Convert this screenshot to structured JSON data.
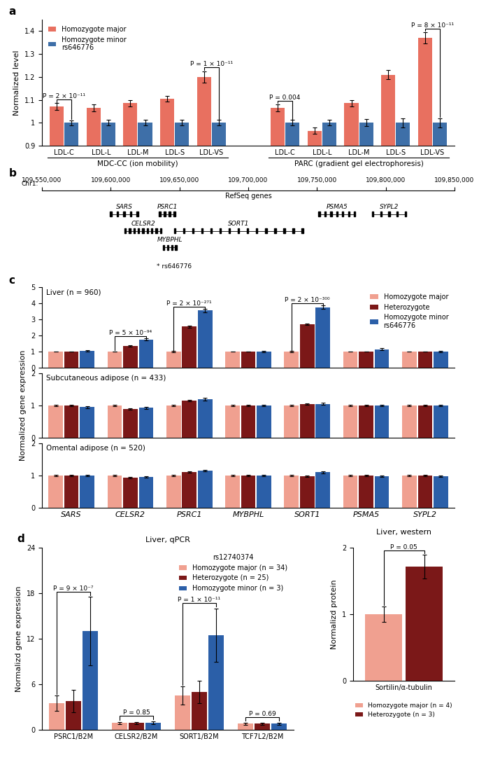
{
  "chart_data": [
    {
      "type": "bar",
      "panel_label": "a",
      "ylabel": "Normalized level",
      "ylim": [
        0.9,
        1.45
      ],
      "yticks": [
        0.9,
        1,
        1.1,
        1.2,
        1.3,
        1.4
      ],
      "categories": [
        "LDL-C",
        "LDL-L",
        "LDL-M",
        "LDL-S",
        "LDL-VS"
      ],
      "groups": [
        "MDC-CC (ion mobility)",
        "PARC (gradient gel electrophoresis)"
      ],
      "series": [
        {
          "name": "Homozygote major",
          "color": "#E87060",
          "values": [
            [
              1.07,
              1.065,
              1.085,
              1.105,
              1.2
            ],
            [
              1.065,
              0.965,
              1.085,
              1.21,
              1.37
            ]
          ],
          "errors": [
            [
              0.015,
              0.015,
              0.013,
              0.013,
              0.025
            ],
            [
              0.015,
              0.013,
              0.015,
              0.02,
              0.025
            ]
          ]
        },
        {
          "name": "Homozygote minor\nrs646776",
          "color": "#3E6FA8",
          "values": [
            [
              1.0,
              1.0,
              1.0,
              1.0,
              1.0
            ],
            [
              1.0,
              1.0,
              1.0,
              1.0,
              1.0
            ]
          ],
          "errors": [
            [
              0.01,
              0.012,
              0.012,
              0.012,
              0.012
            ],
            [
              0.012,
              0.012,
              0.015,
              0.02,
              0.02
            ]
          ]
        }
      ],
      "annotations": [
        {
          "group": "MDC-CC (ion mobility)",
          "category": "LDL-C",
          "text": "P = 2 × 10⁻¹¹"
        },
        {
          "group": "MDC-CC (ion mobility)",
          "category": "LDL-VS",
          "text": "P = 1 × 10⁻¹¹"
        },
        {
          "group": "PARC (gradient gel electrophoresis)",
          "category": "LDL-C",
          "text": "P = 0.004"
        },
        {
          "group": "PARC (gradient gel electrophoresis)",
          "category": "LDL-VS",
          "text": "P = 8 × 10⁻¹¹"
        }
      ],
      "legend": "upper left"
    },
    {
      "type": "gene_track",
      "panel_label": "b",
      "xlabel": "Chr1:",
      "title": "RefSeq genes",
      "xlim": [
        109550000,
        109850000
      ],
      "xticks": [
        {
          "value": 109550000,
          "label": "109,550,000"
        },
        {
          "value": 109600000,
          "label": "109,600,000"
        },
        {
          "value": 109650000,
          "label": "109,650,000"
        },
        {
          "value": 109700000,
          "label": "109,700,000"
        },
        {
          "value": 109750000,
          "label": "109,750,000"
        },
        {
          "value": 109800000,
          "label": "109,800,000"
        },
        {
          "value": 109850000,
          "label": "109,850,000"
        }
      ],
      "genes": [
        {
          "name": "SARS",
          "start": 109599500,
          "end": 109620000,
          "exons": 5
        },
        {
          "name": "PSRC1",
          "start": 109635000,
          "end": 109647000,
          "exons": 4
        },
        {
          "name": "PSMA5",
          "start": 109751000,
          "end": 109778000,
          "exons": 7
        },
        {
          "name": "SYPL2",
          "start": 109790000,
          "end": 109815000,
          "exons": 5
        },
        {
          "name": "CELSR2",
          "start": 109610000,
          "end": 109637000,
          "exons": 9
        },
        {
          "name": "SORT1",
          "start": 109646000,
          "end": 109740000,
          "exons": 15
        },
        {
          "name": "MYBPHL",
          "start": 109638000,
          "end": 109648000,
          "exons": 4
        }
      ],
      "annotations": [
        {
          "x": 109646000,
          "text": "* rs646776"
        }
      ],
      "tick_labels": "x"
    },
    {
      "type": "bar",
      "panel_label": "c",
      "title": "Liver (n = 960)",
      "categories": [
        "SARS",
        "CELSR2",
        "PSRC1",
        "MYBPHL",
        "SORT1",
        "PSMA5",
        "SYPL2"
      ],
      "ylim": [
        0,
        5
      ],
      "yticks": [
        0,
        1,
        2,
        3,
        4,
        5
      ],
      "series": [
        {
          "name": "Homozygote major",
          "color": "#F0A090",
          "values": [
            1.0,
            1.0,
            1.0,
            1.0,
            1.0,
            1.0,
            1.0
          ],
          "errors": [
            0.02,
            0.02,
            0.03,
            0.02,
            0.03,
            0.02,
            0.02
          ]
        },
        {
          "name": "Heterozygote",
          "color": "#7B1818",
          "values": [
            1.0,
            1.35,
            2.55,
            1.0,
            2.7,
            1.0,
            1.0
          ],
          "errors": [
            0.02,
            0.04,
            0.05,
            0.02,
            0.05,
            0.02,
            0.02
          ]
        },
        {
          "name": "Homozygote minor\nrs646776",
          "color": "#2B5FA8",
          "values": [
            1.05,
            1.75,
            3.55,
            1.0,
            3.75,
            1.15,
            1.0
          ],
          "errors": [
            0.04,
            0.06,
            0.1,
            0.03,
            0.1,
            0.05,
            0.03
          ]
        }
      ],
      "annotations": [
        {
          "category": "CELSR2",
          "text": "P = 5 × 10⁻⁹⁴"
        },
        {
          "category": "PSRC1",
          "text": "P = 2 × 10⁻²⁷¹"
        },
        {
          "category": "SORT1",
          "text": "P = 2 × 10⁻³⁰⁰"
        }
      ],
      "legend": "upper right",
      "tick_labels": "y"
    },
    {
      "type": "bar",
      "title": "Subcutaneous adipose (n = 433)",
      "ylabel": "Normalized gene expression",
      "categories": [
        "SARS",
        "CELSR2",
        "PSRC1",
        "MYBPHL",
        "SORT1",
        "PSMA5",
        "SYPL2"
      ],
      "ylim": [
        0,
        2
      ],
      "yticks": [
        0,
        1,
        2
      ],
      "series": [
        {
          "color": "#F0A090",
          "values": [
            1.0,
            1.0,
            1.0,
            1.0,
            1.0,
            1.0,
            1.0
          ],
          "errors": [
            0.02,
            0.02,
            0.02,
            0.02,
            0.02,
            0.02,
            0.02
          ]
        },
        {
          "color": "#7B1818",
          "values": [
            1.0,
            0.9,
            1.15,
            1.0,
            1.05,
            1.0,
            1.0
          ],
          "errors": [
            0.02,
            0.02,
            0.03,
            0.02,
            0.02,
            0.02,
            0.02
          ]
        },
        {
          "color": "#2B5FA8",
          "values": [
            0.95,
            0.93,
            1.2,
            1.0,
            1.05,
            1.0,
            1.0
          ],
          "errors": [
            0.03,
            0.03,
            0.04,
            0.02,
            0.03,
            0.02,
            0.02
          ]
        }
      ],
      "tick_labels": "y"
    },
    {
      "type": "bar",
      "title": "Omental adipose (n = 520)",
      "categories": [
        "SARS",
        "CELSR2",
        "PSRC1",
        "MYBPHL",
        "SORT1",
        "PSMA5",
        "SYPL2"
      ],
      "ylim": [
        0,
        2
      ],
      "yticks": [
        0,
        1,
        2
      ],
      "series": [
        {
          "color": "#F0A090",
          "values": [
            1.0,
            1.0,
            1.0,
            1.0,
            1.0,
            1.0,
            1.0
          ],
          "errors": [
            0.02,
            0.02,
            0.02,
            0.02,
            0.02,
            0.02,
            0.02
          ]
        },
        {
          "color": "#7B1818",
          "values": [
            1.0,
            0.93,
            1.1,
            1.0,
            0.97,
            1.0,
            1.0
          ],
          "errors": [
            0.02,
            0.02,
            0.02,
            0.02,
            0.02,
            0.02,
            0.02
          ]
        },
        {
          "color": "#2B5FA8",
          "values": [
            1.0,
            0.95,
            1.15,
            1.0,
            1.1,
            0.97,
            0.97
          ],
          "errors": [
            0.02,
            0.02,
            0.03,
            0.02,
            0.04,
            0.02,
            0.02
          ]
        }
      ]
    },
    {
      "type": "bar",
      "panel_label": "d",
      "title": "Liver, qPCR",
      "ylabel": "Normalizd gene expression",
      "categories": [
        "PSRC1/B2M",
        "CELSR2/B2M",
        "SORT1/B2M",
        "TCF7L2/B2M"
      ],
      "ylim": [
        0,
        24
      ],
      "yticks": [
        0,
        6,
        12,
        18,
        24
      ],
      "series": [
        {
          "name": "Homozygote major (n = 34)",
          "color": "#F0A090",
          "values": [
            3.5,
            0.9,
            4.5,
            0.8
          ],
          "errors": [
            1.0,
            0.15,
            1.2,
            0.12
          ]
        },
        {
          "name": "Heterozygote (n = 25)",
          "color": "#7B1818",
          "values": [
            3.8,
            0.9,
            5.0,
            0.8
          ],
          "errors": [
            1.5,
            0.15,
            1.5,
            0.12
          ]
        },
        {
          "name": "Homozygote minor (n = 3)",
          "color": "#2B5FA8",
          "values": [
            13.0,
            0.9,
            12.5,
            0.8
          ],
          "errors": [
            4.5,
            0.2,
            3.5,
            0.15
          ]
        }
      ],
      "annotations": [
        {
          "category": "PSRC1/B2M",
          "text": "P = 9 × 10⁻⁷"
        },
        {
          "category": "CELSR2/B2M",
          "text": "P = 0.85"
        },
        {
          "category": "SORT1/B2M",
          "text": "P = 1 × 10⁻¹¹"
        },
        {
          "category": "TCF7L2/B2M",
          "text": "P = 0.69"
        }
      ],
      "legend_title": "rs12740374",
      "legend": "upper right"
    },
    {
      "type": "bar",
      "title": "Liver, western",
      "ylabel": "Normalizd protein",
      "categories": [
        "Sortilin/α-tubulin"
      ],
      "ylim": [
        0,
        2
      ],
      "yticks": [
        0,
        1,
        2
      ],
      "series": [
        {
          "name": "Homozygote major (n = 4)",
          "color": "#F0A090",
          "values": [
            1.0
          ],
          "errors": [
            0.12
          ]
        },
        {
          "name": "Heterozygote (n = 3)",
          "color": "#7B1818",
          "values": [
            1.72
          ],
          "errors": [
            0.18
          ]
        }
      ],
      "annotations": [
        {
          "category": "Sortilin/α-tubulin",
          "text": "P = 0.05"
        }
      ],
      "legend": "upper center"
    }
  ]
}
